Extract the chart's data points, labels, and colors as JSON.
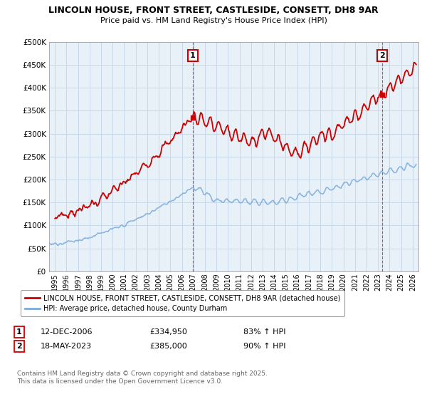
{
  "title": "LINCOLN HOUSE, FRONT STREET, CASTLESIDE, CONSETT, DH8 9AR",
  "subtitle": "Price paid vs. HM Land Registry's House Price Index (HPI)",
  "ylabel_ticks": [
    "£0",
    "£50K",
    "£100K",
    "£150K",
    "£200K",
    "£250K",
    "£300K",
    "£350K",
    "£400K",
    "£450K",
    "£500K"
  ],
  "ytick_values": [
    0,
    50000,
    100000,
    150000,
    200000,
    250000,
    300000,
    350000,
    400000,
    450000,
    500000
  ],
  "xlim_start": 1994.5,
  "xlim_end": 2026.5,
  "ylim": [
    0,
    500000
  ],
  "red_line_color": "#cc0000",
  "blue_line_color": "#7aacdd",
  "vline_color": "#cc0000",
  "grid_color": "#c8d8e8",
  "bg_color": "#e8f0f8",
  "sale1_x": 2006.95,
  "sale1_y": 334950,
  "sale2_x": 2023.37,
  "sale2_y": 385000,
  "legend_red": "LINCOLN HOUSE, FRONT STREET, CASTLESIDE, CONSETT, DH8 9AR (detached house)",
  "legend_blue": "HPI: Average price, detached house, County Durham",
  "annotation1_date": "12-DEC-2006",
  "annotation1_price": "£334,950",
  "annotation1_hpi": "83% ↑ HPI",
  "annotation2_date": "18-MAY-2023",
  "annotation2_price": "£385,000",
  "annotation2_hpi": "90% ↑ HPI",
  "copyright": "Contains HM Land Registry data © Crown copyright and database right 2025.\nThis data is licensed under the Open Government Licence v3.0."
}
